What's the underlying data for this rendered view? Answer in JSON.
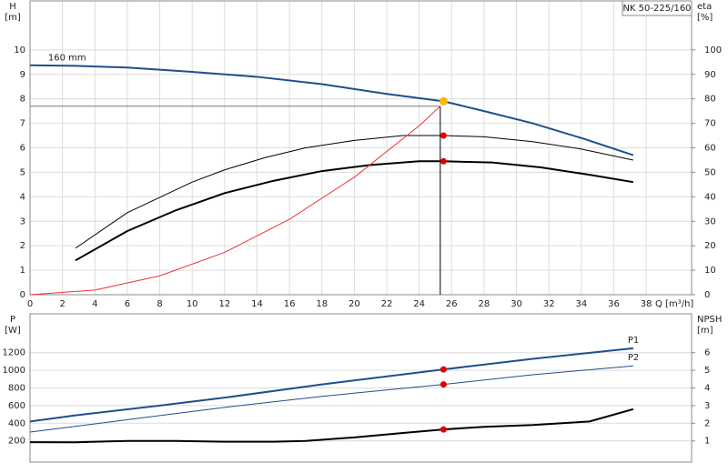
{
  "chart_data": [
    {
      "type": "line",
      "title": "NK 50-225/160",
      "y_label": [
        "H",
        "[m]"
      ],
      "y2_label": [
        "eta",
        "[%]"
      ],
      "x_label": "Q [m³/h]",
      "xlim": [
        0,
        40.8
      ],
      "xticks": [
        0,
        2,
        4,
        6,
        8,
        10,
        12,
        14,
        16,
        18,
        20,
        22,
        24,
        26,
        28,
        30,
        32,
        34,
        36,
        38
      ],
      "ylim": [
        0,
        12
      ],
      "yticks": [
        0,
        1,
        2,
        3,
        4,
        5,
        6,
        7,
        8,
        9,
        10
      ],
      "y2lim": [
        0,
        120
      ],
      "y2ticks": [
        0,
        10,
        20,
        30,
        40,
        50,
        60,
        70,
        80,
        90,
        100
      ],
      "grid": true,
      "series": [
        {
          "name": "160 mm",
          "color": "#1f4e8c",
          "x": [
            0,
            2.8,
            6,
            10,
            14,
            18,
            22,
            25.5,
            28,
            31,
            34,
            37.2
          ],
          "values": [
            9.37,
            9.35,
            9.28,
            9.1,
            8.9,
            8.6,
            8.2,
            7.9,
            7.5,
            7.0,
            6.4,
            5.7
          ]
        },
        {
          "color": "#000000",
          "axis": "y2",
          "x": [
            2.8,
            6,
            10,
            12,
            14.5,
            17,
            20,
            23,
            25.5,
            28,
            31,
            34,
            37.2
          ],
          "values": [
            19,
            33.5,
            46,
            51,
            56,
            60,
            63,
            65,
            65,
            64.5,
            62.5,
            59.5,
            55
          ]
        },
        {
          "color": "#000000",
          "axis": "y2",
          "x": [
            2.8,
            6,
            9,
            12,
            15,
            18,
            21,
            24,
            25.5,
            28.5,
            31.5,
            34.5,
            37.2
          ],
          "values": [
            14,
            26,
            34.5,
            41.5,
            46.5,
            50.5,
            53,
            54.5,
            54.5,
            54,
            52,
            49,
            46
          ]
        },
        {
          "color": "#ee3333",
          "x": [
            0,
            4,
            8,
            12,
            16,
            20,
            24,
            25.3
          ],
          "values": [
            0,
            0.19,
            0.77,
            1.73,
            3.08,
            4.8,
            6.9,
            7.7
          ]
        }
      ],
      "reference": {
        "x": 25.3,
        "y": 7.7
      },
      "markers": [
        {
          "x": 25.5,
          "y": 7.9,
          "color": "#f5b800"
        },
        {
          "x": 25.5,
          "y": 65,
          "axis": "y2",
          "color": "#e00000"
        },
        {
          "x": 25.5,
          "y": 54.5,
          "axis": "y2",
          "color": "#e00000"
        }
      ]
    },
    {
      "type": "line",
      "y_label": [
        "P",
        "[W]"
      ],
      "y2_label": [
        "NPSH",
        "[m]"
      ],
      "xlim": [
        0,
        40.8
      ],
      "ylim": [
        -40,
        1640
      ],
      "yticks": [
        200,
        400,
        600,
        800,
        1000,
        1200
      ],
      "y2lim": [
        -0.2,
        8.2
      ],
      "y2ticks": [
        1,
        2,
        3,
        4,
        5,
        6
      ],
      "grid": true,
      "series": [
        {
          "name": "P1",
          "color": "#1f4e8c",
          "x": [
            0,
            2.8,
            8,
            12,
            18,
            25.5,
            31,
            37.2
          ],
          "values": [
            420,
            490,
            600,
            690,
            840,
            1010,
            1130,
            1250
          ]
        },
        {
          "name": "P2",
          "color": "#1f4e8c",
          "x": [
            0,
            6,
            12,
            18,
            25.5,
            31,
            37.2
          ],
          "values": [
            300,
            440,
            580,
            705,
            840,
            950,
            1050
          ]
        },
        {
          "color": "#000000",
          "axis": "y2",
          "x": [
            0,
            2.8,
            6,
            9,
            12,
            15,
            17,
            20,
            23,
            25.5,
            28,
            31,
            34.5,
            37.2
          ],
          "values": [
            0.93,
            0.92,
            1.0,
            1.0,
            0.95,
            0.95,
            1.0,
            1.2,
            1.45,
            1.65,
            1.8,
            1.9,
            2.1,
            2.8
          ]
        }
      ],
      "markers": [
        {
          "x": 25.5,
          "y": 1010,
          "color": "#e00000"
        },
        {
          "x": 25.5,
          "y": 840,
          "color": "#e00000"
        },
        {
          "x": 25.5,
          "y": 1.65,
          "axis": "y2",
          "color": "#e00000"
        }
      ]
    }
  ]
}
